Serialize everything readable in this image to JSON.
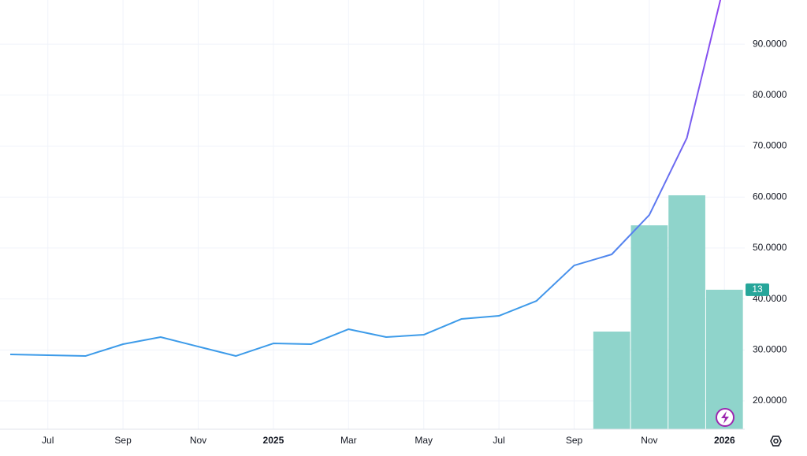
{
  "chart_data": {
    "type": "line",
    "categories": [
      null,
      "Jul",
      null,
      "Sep",
      null,
      "Nov",
      null,
      "2025",
      null,
      "Mar",
      null,
      "May",
      null,
      "Jul",
      null,
      "Sep",
      null,
      "Nov",
      null,
      "2026"
    ],
    "series": [
      {
        "values": [
          29.12,
          28.96,
          28.81,
          31.13,
          32.52,
          30.66,
          28.81,
          31.28,
          31.13,
          34.07,
          32.52,
          32.98,
          36.07,
          36.69,
          39.63,
          46.58,
          48.75,
          56.48,
          71.62,
          102
        ],
        "colors": [
          "#3d9be9",
          "#5b7cf0",
          "#a334f0"
        ]
      },
      {
        "type": "bar",
        "axis": "y2",
        "color": "#8fd4cb",
        "label_color": "#26a69a",
        "values": [
          0,
          0,
          0,
          0,
          0,
          0,
          0,
          0,
          0,
          0,
          0,
          0,
          0,
          0,
          0,
          0,
          9.1,
          19,
          21.8,
          13
        ]
      }
    ],
    "ylim": [
      14.44,
      98.67
    ],
    "yticks": [
      {
        "value": 20,
        "label": "20.0000"
      },
      {
        "value": 30,
        "label": "30.0000"
      },
      {
        "value": 40,
        "label": "40.0000"
      },
      {
        "value": 50,
        "label": "50.0000"
      },
      {
        "value": 60,
        "label": "60.0000"
      },
      {
        "value": 70,
        "label": "70.0000"
      },
      {
        "value": 80,
        "label": "80.0000"
      },
      {
        "value": 90,
        "label": "90.0000"
      }
    ],
    "y2lim": [
      0,
      40
    ],
    "grid": true
  }
}
